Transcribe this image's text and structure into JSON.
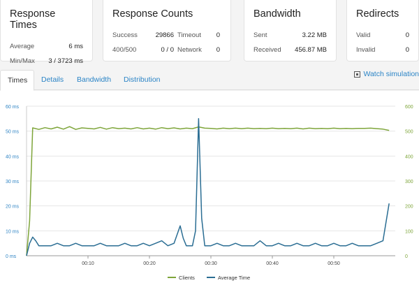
{
  "cards": {
    "response_times": {
      "title": "Response Times",
      "average_label": "Average",
      "average_value": "6 ms",
      "minmax_label": "Min/Max",
      "minmax_value": "3 / 3723 ms"
    },
    "response_counts": {
      "title": "Response Counts",
      "success_label": "Success",
      "success_value": "29866",
      "timeout_label": "Timeout",
      "timeout_value": "0",
      "c400_label": "400/500",
      "c400_value": "0 / 0",
      "network_label": "Network",
      "network_value": "0"
    },
    "bandwidth": {
      "title": "Bandwidth",
      "sent_label": "Sent",
      "sent_value": "3.22 MB",
      "received_label": "Received",
      "received_value": "456.87 MB"
    },
    "redirects": {
      "title": "Redirects",
      "valid_label": "Valid",
      "valid_value": "0",
      "invalid_label": "Invalid",
      "invalid_value": "0"
    }
  },
  "tabs": [
    {
      "label": "Times",
      "active": true
    },
    {
      "label": "Details",
      "active": false
    },
    {
      "label": "Bandwidth",
      "active": false
    },
    {
      "label": "Distribution",
      "active": false
    }
  ],
  "watch_simulation": {
    "label": "Watch simulation",
    "icon": "monitor-icon"
  },
  "colors": {
    "clients": "#7ea53a",
    "average_time": "#2a6d93",
    "left_axis": "#2f84c4",
    "right_axis": "#7ea53a"
  },
  "chart_data": {
    "type": "line",
    "y_left": {
      "range": [
        0,
        60
      ],
      "unit": "ms",
      "ticks": [
        "0 ms",
        "10 ms",
        "20 ms",
        "30 ms",
        "40 ms",
        "50 ms",
        "60 ms"
      ]
    },
    "y_right": {
      "range": [
        0,
        600
      ],
      "ticks": [
        "0",
        "100",
        "200",
        "300",
        "400",
        "500",
        "600"
      ]
    },
    "x": {
      "range": [
        0,
        60
      ],
      "unit": "seconds",
      "ticks": [
        {
          "t": 10,
          "label": "00:10"
        },
        {
          "t": 20,
          "label": "00:20"
        },
        {
          "t": 30,
          "label": "00:30"
        },
        {
          "t": 40,
          "label": "00:40"
        },
        {
          "t": 50,
          "label": "00:50"
        }
      ]
    },
    "grid": true,
    "legend": {
      "placement": "bottom-center",
      "items": [
        "Clients",
        "Average Time"
      ]
    },
    "series": [
      {
        "name": "Clients",
        "axis": "right",
        "color": "#7ea53a",
        "points": [
          [
            0,
            0
          ],
          [
            0.5,
            140
          ],
          [
            1,
            513
          ],
          [
            2,
            507
          ],
          [
            3,
            514
          ],
          [
            4,
            509
          ],
          [
            5,
            516
          ],
          [
            6,
            508
          ],
          [
            7,
            518
          ],
          [
            8,
            507
          ],
          [
            9,
            513
          ],
          [
            10,
            511
          ],
          [
            11,
            509
          ],
          [
            12,
            515
          ],
          [
            13,
            508
          ],
          [
            14,
            514
          ],
          [
            15,
            510
          ],
          [
            16,
            512
          ],
          [
            17,
            509
          ],
          [
            18,
            514
          ],
          [
            19,
            509
          ],
          [
            20,
            512
          ],
          [
            21,
            508
          ],
          [
            22,
            514
          ],
          [
            23,
            510
          ],
          [
            24,
            513
          ],
          [
            25,
            509
          ],
          [
            26,
            512
          ],
          [
            27,
            510
          ],
          [
            28,
            517
          ],
          [
            29,
            512
          ],
          [
            30,
            511
          ],
          [
            31,
            509
          ],
          [
            32,
            512
          ],
          [
            33,
            510
          ],
          [
            34,
            512
          ],
          [
            35,
            510
          ],
          [
            36,
            512
          ],
          [
            37,
            510
          ],
          [
            38,
            511
          ],
          [
            39,
            510
          ],
          [
            40,
            512
          ],
          [
            41,
            510
          ],
          [
            42,
            511
          ],
          [
            43,
            510
          ],
          [
            44,
            512
          ],
          [
            45,
            509
          ],
          [
            46,
            512
          ],
          [
            47,
            510
          ],
          [
            48,
            511
          ],
          [
            49,
            510
          ],
          [
            50,
            512
          ],
          [
            51,
            510
          ],
          [
            52,
            511
          ],
          [
            53,
            510
          ],
          [
            54,
            511
          ],
          [
            55,
            511
          ],
          [
            56,
            512
          ],
          [
            57,
            510
          ],
          [
            58,
            508
          ],
          [
            59,
            503
          ]
        ]
      },
      {
        "name": "Average Time",
        "axis": "left",
        "color": "#2a6d93",
        "points": [
          [
            0,
            0
          ],
          [
            0.5,
            5
          ],
          [
            1,
            7.5
          ],
          [
            1.5,
            6
          ],
          [
            2,
            4
          ],
          [
            3,
            4
          ],
          [
            4,
            4
          ],
          [
            5,
            5
          ],
          [
            6,
            4
          ],
          [
            7,
            4
          ],
          [
            8,
            5
          ],
          [
            9,
            4
          ],
          [
            10,
            4
          ],
          [
            11,
            4
          ],
          [
            12,
            5
          ],
          [
            13,
            4
          ],
          [
            14,
            4
          ],
          [
            15,
            4
          ],
          [
            16,
            5
          ],
          [
            17,
            4
          ],
          [
            18,
            4
          ],
          [
            19,
            5
          ],
          [
            20,
            4
          ],
          [
            21,
            5
          ],
          [
            22,
            6
          ],
          [
            23,
            4
          ],
          [
            24,
            5
          ],
          [
            25,
            12
          ],
          [
            25.5,
            7
          ],
          [
            26,
            4
          ],
          [
            27,
            4
          ],
          [
            27.5,
            10
          ],
          [
            28,
            55
          ],
          [
            28.5,
            15
          ],
          [
            29,
            4
          ],
          [
            30,
            4
          ],
          [
            31,
            5
          ],
          [
            32,
            4
          ],
          [
            33,
            4
          ],
          [
            34,
            5
          ],
          [
            35,
            4
          ],
          [
            36,
            4
          ],
          [
            37,
            4
          ],
          [
            38,
            6
          ],
          [
            39,
            4
          ],
          [
            40,
            4
          ],
          [
            41,
            5
          ],
          [
            42,
            4
          ],
          [
            43,
            4
          ],
          [
            44,
            5
          ],
          [
            45,
            4
          ],
          [
            46,
            4
          ],
          [
            47,
            5
          ],
          [
            48,
            4
          ],
          [
            49,
            4
          ],
          [
            50,
            5
          ],
          [
            51,
            4
          ],
          [
            52,
            4
          ],
          [
            53,
            5
          ],
          [
            54,
            4
          ],
          [
            55,
            4
          ],
          [
            56,
            4
          ],
          [
            57,
            5
          ],
          [
            58,
            6
          ],
          [
            59,
            21
          ]
        ]
      }
    ]
  }
}
